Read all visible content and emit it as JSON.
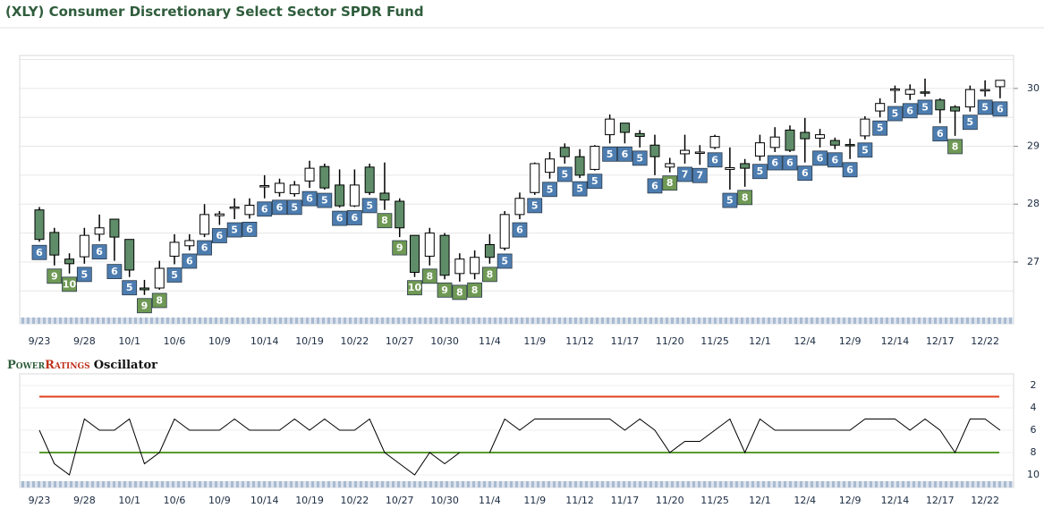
{
  "chart_data": [
    {
      "type": "candlestick",
      "title": "(XLY) Consumer Discretionary Select Sector SPDR Fund",
      "categories": [
        "9/23",
        null,
        null,
        "9/28",
        null,
        null,
        "10/1",
        null,
        null,
        "10/6",
        null,
        null,
        "10/9",
        null,
        null,
        "10/14",
        null,
        null,
        "10/19",
        null,
        null,
        "10/22",
        null,
        null,
        "10/27",
        null,
        null,
        "10/30",
        null,
        null,
        "11/4",
        null,
        null,
        "11/9",
        null,
        null,
        "11/12",
        null,
        null,
        "11/17",
        null,
        null,
        "11/20",
        null,
        null,
        "11/25",
        null,
        null,
        "12/1",
        null,
        null,
        "12/4",
        null,
        null,
        "12/9",
        null,
        null,
        "12/14",
        null,
        null,
        "12/17",
        null,
        null,
        "12/22",
        null
      ],
      "open": [
        27.9,
        27.51,
        27.05,
        27.09,
        27.48,
        27.74,
        27.39,
        26.55,
        26.55,
        27.1,
        27.28,
        27.48,
        27.8,
        27.93,
        27.82,
        28.3,
        28.2,
        28.18,
        28.4,
        28.65,
        28.33,
        27.97,
        28.64,
        28.19,
        28.05,
        27.46,
        27.1,
        27.46,
        26.8,
        26.8,
        27.3,
        27.24,
        27.82,
        28.2,
        28.55,
        28.98,
        28.82,
        28.6,
        29.2,
        29.4,
        29.22,
        29.02,
        28.64,
        28.87,
        28.9,
        28.98,
        28.6,
        28.7,
        28.83,
        28.98,
        29.28,
        29.24,
        29.14,
        29.1,
        29.03,
        29.18,
        29.61,
        29.98,
        29.9,
        29.94,
        29.8,
        29.68,
        29.68,
        29.98,
        30.03
      ],
      "high": [
        27.95,
        27.59,
        27.15,
        27.59,
        27.82,
        27.74,
        27.39,
        26.69,
        27.02,
        27.48,
        27.48,
        28.0,
        27.88,
        28.1,
        28.1,
        28.5,
        28.44,
        28.4,
        28.75,
        28.7,
        28.6,
        28.6,
        28.7,
        28.72,
        28.1,
        27.46,
        27.59,
        27.5,
        27.15,
        27.2,
        27.48,
        27.88,
        28.2,
        28.72,
        28.9,
        29.05,
        28.95,
        29.02,
        29.55,
        29.4,
        29.28,
        29.2,
        28.8,
        29.2,
        29.02,
        29.2,
        28.98,
        28.78,
        29.2,
        29.33,
        29.36,
        29.49,
        29.3,
        29.15,
        29.13,
        29.52,
        29.83,
        30.05,
        30.07,
        30.17,
        29.83,
        29.71,
        30.05,
        30.14,
        30.14
      ],
      "low": [
        27.35,
        26.94,
        26.8,
        26.97,
        27.36,
        27.02,
        26.74,
        26.43,
        26.52,
        26.96,
        27.2,
        27.43,
        27.64,
        27.74,
        27.75,
        28.1,
        28.13,
        28.13,
        28.28,
        28.25,
        27.94,
        27.95,
        28.16,
        27.9,
        27.43,
        26.74,
        26.94,
        26.7,
        26.66,
        26.7,
        26.97,
        27.2,
        27.74,
        28.16,
        28.44,
        28.7,
        28.45,
        28.58,
        29.05,
        29.05,
        28.98,
        28.5,
        28.55,
        28.7,
        28.68,
        28.95,
        28.25,
        28.3,
        28.75,
        28.9,
        28.9,
        28.72,
        28.98,
        28.95,
        28.78,
        29.12,
        29.5,
        29.75,
        29.8,
        29.86,
        29.4,
        29.18,
        29.6,
        29.86,
        29.83
      ],
      "close": [
        27.39,
        27.12,
        26.97,
        27.46,
        27.59,
        27.43,
        26.86,
        26.52,
        26.89,
        27.34,
        27.37,
        27.82,
        27.83,
        27.95,
        27.98,
        28.32,
        28.36,
        28.33,
        28.62,
        28.28,
        27.97,
        28.33,
        28.2,
        28.07,
        27.59,
        26.82,
        27.5,
        26.77,
        27.05,
        27.08,
        27.08,
        27.82,
        28.1,
        28.7,
        28.78,
        28.82,
        28.5,
        29.0,
        29.47,
        29.24,
        29.17,
        28.82,
        28.7,
        28.93,
        28.9,
        29.17,
        28.63,
        28.62,
        29.06,
        29.16,
        28.93,
        29.13,
        29.2,
        29.02,
        29.02,
        29.47,
        29.74,
        29.99,
        29.98,
        29.93,
        29.63,
        29.61,
        29.98,
        29.98,
        30.14
      ],
      "ratings": [
        6,
        9,
        10,
        5,
        6,
        6,
        5,
        9,
        8,
        5,
        6,
        6,
        6,
        5,
        6,
        6,
        6,
        5,
        6,
        5,
        6,
        6,
        5,
        8,
        9,
        10,
        8,
        9,
        8,
        8,
        8,
        5,
        6,
        5,
        5,
        5,
        5,
        5,
        5,
        6,
        5,
        6,
        8,
        7,
        7,
        6,
        5,
        8,
        5,
        6,
        6,
        6,
        6,
        6,
        6,
        5,
        5,
        5,
        6,
        5,
        6,
        8,
        5,
        5,
        6
      ],
      "colors": {
        "up": "#ffffff",
        "down": "#5f8d69",
        "rating_low": "#4d7db0",
        "rating_high": "#6f9955"
      },
      "ylim": [
        26.04,
        30.57
      ],
      "yticks": [
        27,
        28,
        29,
        30
      ],
      "ygrid": [
        26.5,
        27,
        27.5,
        28,
        28.5,
        29,
        29.5,
        30,
        30.5
      ]
    },
    {
      "type": "line",
      "title": {
        "brand_1": "Power",
        "brand_2": "Ratings",
        "rest": "Oscillator"
      },
      "categories": [
        "9/23",
        null,
        null,
        "9/28",
        null,
        null,
        "10/1",
        null,
        null,
        "10/6",
        null,
        null,
        "10/9",
        null,
        null,
        "10/14",
        null,
        null,
        "10/19",
        null,
        null,
        "10/22",
        null,
        null,
        "10/27",
        null,
        null,
        "10/30",
        null,
        null,
        "11/4",
        null,
        null,
        "11/9",
        null,
        null,
        "11/12",
        null,
        null,
        "11/17",
        null,
        null,
        "11/20",
        null,
        null,
        "11/25",
        null,
        null,
        "12/1",
        null,
        null,
        "12/4",
        null,
        null,
        "12/9",
        null,
        null,
        "12/14",
        null,
        null,
        "12/17",
        null,
        null,
        "12/22",
        null
      ],
      "values": [
        6,
        9,
        10,
        5,
        6,
        6,
        5,
        9,
        8,
        5,
        6,
        6,
        6,
        5,
        6,
        6,
        6,
        5,
        6,
        5,
        6,
        6,
        5,
        8,
        9,
        10,
        8,
        9,
        8,
        null,
        8,
        5,
        6,
        5,
        5,
        5,
        5,
        5,
        5,
        6,
        5,
        6,
        8,
        7,
        7,
        6,
        5,
        8,
        5,
        6,
        6,
        6,
        6,
        6,
        6,
        5,
        5,
        5,
        6,
        5,
        6,
        8,
        5,
        5,
        6
      ],
      "color": "#000000",
      "ref_lines": [
        {
          "value": 3,
          "color": "#e2401c"
        },
        {
          "value": 8,
          "color": "#5a9a2a"
        }
      ],
      "ylim": [
        1,
        11
      ],
      "y_inverted": true,
      "yticks": [
        2,
        4,
        6,
        8,
        10
      ]
    }
  ]
}
